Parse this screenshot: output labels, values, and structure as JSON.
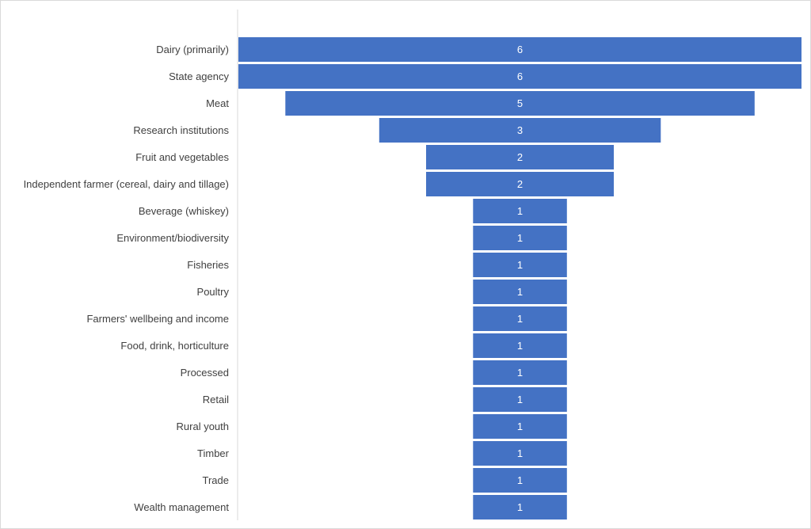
{
  "chart_data": {
    "type": "bar",
    "subtype": "funnel",
    "categories": [
      "Dairy (primarily)",
      "State agency",
      "Meat",
      "Research institutions",
      "Fruit and vegetables",
      "Independent farmer (cereal, dairy and tillage)",
      "Beverage (whiskey)",
      "Environment/biodiversity",
      "Fisheries",
      "Poultry",
      "Farmers' wellbeing and income",
      "Food, drink, horticulture",
      "Processed",
      "Retail",
      "Rural youth",
      "Timber",
      "Trade",
      "Wealth management"
    ],
    "values": [
      6,
      6,
      5,
      3,
      2,
      2,
      1,
      1,
      1,
      1,
      1,
      1,
      1,
      1,
      1,
      1,
      1,
      1
    ],
    "title": "",
    "xlabel": "",
    "ylabel": "",
    "xlim": [
      0,
      6
    ],
    "grid": false,
    "legend": "none",
    "bar_color": "#4472C4",
    "label_color": "#404040",
    "data_label_color": "#FFFFFF"
  }
}
